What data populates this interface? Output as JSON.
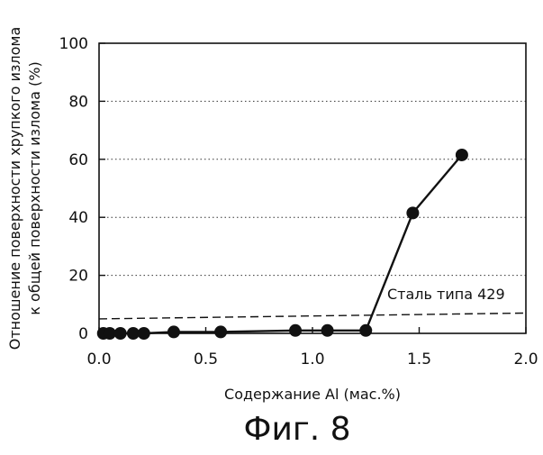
{
  "chart_data": {
    "type": "scatter",
    "title": "",
    "xlabel": "Содержание Al (мас.%)",
    "ylabel_lines": [
      "Отношение поверхности хрупкого излома",
      "к общей поверхности излома (%)"
    ],
    "xlim": [
      0,
      2.0
    ],
    "ylim": [
      0,
      100
    ],
    "x_ticks": [
      "0.0",
      "0.5",
      "1.0",
      "1.5",
      "2.0"
    ],
    "y_ticks": [
      "0",
      "20",
      "40",
      "60",
      "80",
      "100"
    ],
    "grid": "horizontal-dotted",
    "series": [
      {
        "points": [
          [
            0.02,
            0
          ],
          [
            0.05,
            0
          ],
          [
            0.1,
            0
          ],
          [
            0.16,
            0
          ],
          [
            0.21,
            0
          ],
          [
            0.35,
            0.5
          ],
          [
            0.57,
            0.5
          ],
          [
            0.92,
            1
          ],
          [
            1.07,
            1
          ],
          [
            1.25,
            1
          ],
          [
            1.47,
            41.5
          ],
          [
            1.7,
            61.5
          ]
        ]
      }
    ],
    "reference_line": {
      "label": "Сталь типа 429",
      "y_start": 5,
      "y_end": 7
    }
  },
  "figure_caption": "Фиг. 8"
}
